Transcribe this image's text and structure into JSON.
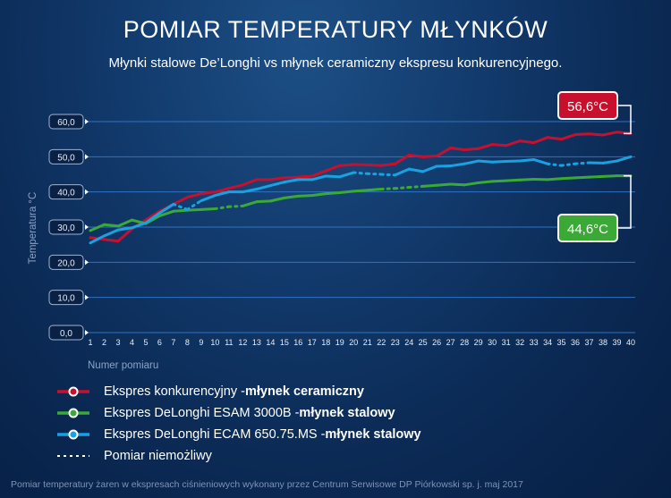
{
  "title": "POMIAR TEMPERATURY MŁYNKÓW",
  "subtitle": "Młynki stalowe De’Longhi vs młynek ceramiczny ekspresu konkurencyjnego.",
  "footnote": "Pomiar temperatury żaren w ekspresach ciśnieniowych wykonany przez Centrum Serwisowe DP Piórkowski sp. j. maj 2017",
  "colors": {
    "red": "#c8102e",
    "green": "#3aa935",
    "blue": "#1aa1e0",
    "grid": "#2f73c2"
  },
  "legend": [
    {
      "series": "red",
      "label": "Ekspres konkurencyjny - ",
      "bold": "młynek ceramiczny"
    },
    {
      "series": "green",
      "label": "Ekspres DeLonghi ESAM 3000B - ",
      "bold": "młynek stalowy"
    },
    {
      "series": "blue",
      "label": "Ekspres DeLonghi ECAM 650.75.MS - ",
      "bold": "młynek stalowy"
    },
    {
      "series": "dotted",
      "label": "Pomiar niemożliwy",
      "bold": ""
    }
  ],
  "chart_data": {
    "type": "line",
    "xlabel": "Numer pomiaru",
    "ylabel": "Temperatura °C",
    "ylim": [
      0,
      60
    ],
    "yticks": [
      "0,0",
      "10,0",
      "20,0",
      "30,0",
      "40,0",
      "50,0",
      "60,0"
    ],
    "x": [
      1,
      2,
      3,
      4,
      5,
      6,
      7,
      8,
      9,
      10,
      11,
      12,
      13,
      14,
      15,
      16,
      17,
      18,
      19,
      20,
      21,
      22,
      23,
      24,
      25,
      26,
      27,
      28,
      29,
      30,
      31,
      32,
      33,
      34,
      35,
      36,
      37,
      38,
      39,
      40
    ],
    "grid": true,
    "series": [
      {
        "key": "red",
        "name": "Ekspres konkurencyjny - młynek ceramiczny",
        "values": [
          27,
          26.5,
          26,
          29.5,
          32,
          34.5,
          36.5,
          38.5,
          39.5,
          40,
          41,
          42,
          43.5,
          43.5,
          44,
          44.2,
          44.5,
          46,
          47.5,
          47.8,
          47.7,
          47.5,
          48,
          50.5,
          50,
          50.2,
          52.5,
          52,
          52.3,
          53.5,
          53.2,
          54.5,
          54,
          55.5,
          55,
          56.3,
          56.5,
          56.2,
          57,
          56.6
        ],
        "dotted": []
      },
      {
        "key": "green",
        "name": "Ekspres DeLonghi ESAM 3000B - młynek stalowy",
        "values": [
          29,
          30.7,
          30.3,
          32,
          31,
          33.2,
          34.5,
          34.8,
          35,
          35.2,
          35.8,
          36,
          37.2,
          37.4,
          38.3,
          38.8,
          39,
          39.5,
          39.8,
          40.2,
          40.5,
          40.8,
          41,
          41.3,
          41.6,
          41.9,
          42.2,
          42,
          42.6,
          43,
          43.2,
          43.4,
          43.6,
          43.5,
          43.8,
          44,
          44.2,
          44.4,
          44.6,
          44.6
        ],
        "dotted": [
          [
            10,
            12
          ],
          [
            22,
            25
          ]
        ]
      },
      {
        "key": "blue",
        "name": "Ekspres DeLonghi ECAM 650.75.MS - młynek stalowy",
        "values": [
          25.5,
          27.5,
          29.2,
          29.8,
          31.2,
          34,
          36.5,
          35,
          37.5,
          39,
          40,
          40,
          40.8,
          41.8,
          42.8,
          43.5,
          43.5,
          44.5,
          44.3,
          45.5,
          45.2,
          45,
          44.8,
          46.5,
          45.8,
          47.3,
          47.4,
          48,
          48.8,
          48.5,
          48.7,
          48.8,
          49.2,
          48,
          47.5,
          48,
          48.3,
          48.2,
          48.8,
          50
        ],
        "dotted": [
          [
            7,
            9
          ],
          [
            20,
            23
          ],
          [
            34,
            37
          ]
        ]
      }
    ],
    "annotations": [
      {
        "series": "red",
        "text": "56,6°C"
      },
      {
        "series": "green",
        "text": "44,6°C"
      }
    ]
  }
}
